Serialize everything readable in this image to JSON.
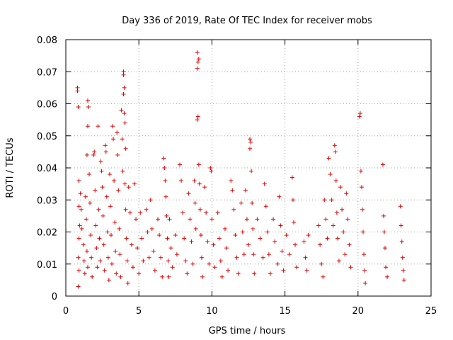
{
  "chart_data": {
    "type": "scatter",
    "title": "Day 336 of 2019, Rate Of TEC Index for receiver mobs",
    "xlabel": "GPS time / hours",
    "ylabel": "ROTI / TECUs",
    "xlim": [
      0,
      25
    ],
    "ylim": [
      0,
      0.08
    ],
    "xticks": [
      "0",
      "5",
      "10",
      "15",
      "20",
      "25"
    ],
    "xtick_values": [
      0,
      5,
      10,
      15,
      20,
      25
    ],
    "yticks": [
      "0",
      "0.01",
      "0.02",
      "0.03",
      "0.04",
      "0.05",
      "0.06",
      "0.07",
      "0.08"
    ],
    "ytick_values": [
      0,
      0.01,
      0.02,
      0.03,
      0.04,
      0.05,
      0.06,
      0.07,
      0.08
    ],
    "grid": true,
    "marker": "+",
    "color": "#e00000",
    "series": [
      {
        "name": "ROTI",
        "points": [
          [
            0.8,
            0.065
          ],
          [
            0.8,
            0.064
          ],
          [
            0.85,
            0.059
          ],
          [
            0.9,
            0.036
          ],
          [
            0.9,
            0.028
          ],
          [
            0.95,
            0.022
          ],
          [
            0.9,
            0.018
          ],
          [
            0.85,
            0.012
          ],
          [
            0.9,
            0.008
          ],
          [
            0.85,
            0.003
          ],
          [
            1.0,
            0.032
          ],
          [
            1.05,
            0.027
          ],
          [
            1.1,
            0.021
          ],
          [
            1.2,
            0.016
          ],
          [
            1.25,
            0.011
          ],
          [
            1.3,
            0.007
          ],
          [
            1.35,
            0.031
          ],
          [
            1.4,
            0.024
          ],
          [
            1.45,
            0.014
          ],
          [
            1.5,
            0.009
          ],
          [
            1.5,
            0.061
          ],
          [
            1.55,
            0.059
          ],
          [
            1.5,
            0.053
          ],
          [
            1.45,
            0.044
          ],
          [
            1.6,
            0.038
          ],
          [
            1.65,
            0.029
          ],
          [
            1.7,
            0.019
          ],
          [
            1.75,
            0.012
          ],
          [
            1.8,
            0.006
          ],
          [
            1.9,
            0.044
          ],
          [
            1.95,
            0.045
          ],
          [
            2.0,
            0.033
          ],
          [
            2.05,
            0.022
          ],
          [
            2.1,
            0.015
          ],
          [
            2.15,
            0.009
          ],
          [
            2.2,
            0.053
          ],
          [
            2.25,
            0.027
          ],
          [
            2.3,
            0.018
          ],
          [
            2.35,
            0.011
          ],
          [
            2.4,
            0.042
          ],
          [
            2.45,
            0.039
          ],
          [
            2.5,
            0.034
          ],
          [
            2.55,
            0.025
          ],
          [
            2.6,
            0.016
          ],
          [
            2.65,
            0.008
          ],
          [
            2.7,
            0.047
          ],
          [
            2.75,
            0.045
          ],
          [
            2.8,
            0.031
          ],
          [
            2.85,
            0.02
          ],
          [
            2.9,
            0.012
          ],
          [
            2.95,
            0.005
          ],
          [
            3.0,
            0.038
          ],
          [
            3.05,
            0.028
          ],
          [
            3.1,
            0.019
          ],
          [
            3.15,
            0.01
          ],
          [
            3.2,
            0.053
          ],
          [
            3.25,
            0.049
          ],
          [
            3.3,
            0.036
          ],
          [
            3.35,
            0.023
          ],
          [
            3.4,
            0.014
          ],
          [
            3.45,
            0.007
          ],
          [
            3.5,
            0.051
          ],
          [
            3.55,
            0.044
          ],
          [
            3.6,
            0.033
          ],
          [
            3.65,
            0.021
          ],
          [
            3.7,
            0.013
          ],
          [
            3.75,
            0.006
          ],
          [
            3.8,
            0.058
          ],
          [
            3.85,
            0.049
          ],
          [
            3.9,
            0.039
          ],
          [
            3.95,
            0.07
          ],
          [
            3.95,
            0.069
          ],
          [
            4.0,
            0.065
          ],
          [
            3.95,
            0.063
          ],
          [
            4.0,
            0.057
          ],
          [
            4.05,
            0.054
          ],
          [
            4.1,
            0.046
          ],
          [
            4.05,
            0.035
          ],
          [
            4.1,
            0.027
          ],
          [
            4.15,
            0.018
          ],
          [
            4.2,
            0.011
          ],
          [
            4.25,
            0.004
          ],
          [
            4.3,
            0.034
          ],
          [
            4.4,
            0.026
          ],
          [
            4.5,
            0.016
          ],
          [
            4.6,
            0.009
          ],
          [
            4.7,
            0.035
          ],
          [
            4.8,
            0.024
          ],
          [
            4.9,
            0.015
          ],
          [
            5.0,
            0.007
          ],
          [
            5.1,
            0.026
          ],
          [
            5.2,
            0.018
          ],
          [
            5.3,
            0.011
          ],
          [
            5.5,
            0.027
          ],
          [
            5.6,
            0.02
          ],
          [
            5.7,
            0.012
          ],
          [
            5.8,
            0.03
          ],
          [
            5.9,
            0.021
          ],
          [
            6.0,
            0.014
          ],
          [
            6.1,
            0.008
          ],
          [
            6.3,
            0.024
          ],
          [
            6.4,
            0.019
          ],
          [
            6.5,
            0.012
          ],
          [
            6.6,
            0.006
          ],
          [
            6.7,
            0.043
          ],
          [
            6.75,
            0.04
          ],
          [
            6.8,
            0.036
          ],
          [
            6.85,
            0.031
          ],
          [
            6.9,
            0.025
          ],
          [
            6.95,
            0.018
          ],
          [
            7.0,
            0.011
          ],
          [
            7.05,
            0.006
          ],
          [
            7.1,
            0.024
          ],
          [
            7.2,
            0.015
          ],
          [
            7.3,
            0.009
          ],
          [
            7.5,
            0.019
          ],
          [
            7.6,
            0.013
          ],
          [
            7.8,
            0.041
          ],
          [
            7.9,
            0.036
          ],
          [
            8.0,
            0.026
          ],
          [
            8.1,
            0.018
          ],
          [
            8.2,
            0.011
          ],
          [
            8.3,
            0.007
          ],
          [
            8.4,
            0.032
          ],
          [
            8.5,
            0.024
          ],
          [
            8.6,
            0.017
          ],
          [
            8.7,
            0.01
          ],
          [
            8.8,
            0.036
          ],
          [
            8.85,
            0.029
          ],
          [
            8.9,
            0.021
          ],
          [
            9.0,
            0.076
          ],
          [
            9.05,
            0.073
          ],
          [
            9.0,
            0.071
          ],
          [
            9.1,
            0.074
          ],
          [
            9.0,
            0.055
          ],
          [
            9.05,
            0.056
          ],
          [
            9.1,
            0.041
          ],
          [
            9.15,
            0.035
          ],
          [
            9.2,
            0.027
          ],
          [
            9.25,
            0.019
          ],
          [
            9.3,
            0.012
          ],
          [
            9.35,
            0.006
          ],
          [
            9.5,
            0.034
          ],
          [
            9.6,
            0.026
          ],
          [
            9.7,
            0.017
          ],
          [
            9.8,
            0.01
          ],
          [
            9.9,
            0.04
          ],
          [
            9.95,
            0.039
          ],
          [
            10.0,
            0.024
          ],
          [
            10.1,
            0.016
          ],
          [
            10.2,
            0.009
          ],
          [
            10.4,
            0.026
          ],
          [
            10.5,
            0.018
          ],
          [
            10.6,
            0.011
          ],
          [
            10.7,
            0.006
          ],
          [
            10.9,
            0.021
          ],
          [
            11.0,
            0.015
          ],
          [
            11.1,
            0.008
          ],
          [
            11.3,
            0.036
          ],
          [
            11.4,
            0.033
          ],
          [
            11.5,
            0.027
          ],
          [
            11.6,
            0.019
          ],
          [
            11.7,
            0.012
          ],
          [
            11.8,
            0.007
          ],
          [
            12.0,
            0.029
          ],
          [
            12.1,
            0.02
          ],
          [
            12.2,
            0.013
          ],
          [
            12.3,
            0.033
          ],
          [
            12.4,
            0.024
          ],
          [
            12.5,
            0.016
          ],
          [
            12.6,
            0.049
          ],
          [
            12.65,
            0.048
          ],
          [
            12.6,
            0.046
          ],
          [
            12.7,
            0.039
          ],
          [
            12.75,
            0.029
          ],
          [
            12.8,
            0.021
          ],
          [
            12.85,
            0.013
          ],
          [
            12.9,
            0.007
          ],
          [
            13.1,
            0.024
          ],
          [
            13.3,
            0.018
          ],
          [
            13.5,
            0.012
          ],
          [
            13.6,
            0.035
          ],
          [
            13.7,
            0.028
          ],
          [
            13.8,
            0.02
          ],
          [
            13.9,
            0.013
          ],
          [
            14.0,
            0.007
          ],
          [
            14.2,
            0.024
          ],
          [
            14.3,
            0.017
          ],
          [
            14.5,
            0.01
          ],
          [
            14.6,
            0.031
          ],
          [
            14.7,
            0.022
          ],
          [
            14.8,
            0.014
          ],
          [
            14.9,
            0.008
          ],
          [
            15.1,
            0.019
          ],
          [
            15.3,
            0.013
          ],
          [
            15.5,
            0.037
          ],
          [
            15.55,
            0.03
          ],
          [
            15.6,
            0.023
          ],
          [
            15.7,
            0.016
          ],
          [
            15.8,
            0.009
          ],
          [
            16.3,
            0.017
          ],
          [
            16.4,
            0.012
          ],
          [
            16.5,
            0.008
          ],
          [
            16.6,
            0.019
          ],
          [
            17.3,
            0.022
          ],
          [
            17.4,
            0.016
          ],
          [
            17.5,
            0.01
          ],
          [
            17.6,
            0.006
          ],
          [
            17.7,
            0.03
          ],
          [
            17.8,
            0.024
          ],
          [
            17.9,
            0.018
          ],
          [
            18.0,
            0.043
          ],
          [
            18.1,
            0.038
          ],
          [
            18.2,
            0.03
          ],
          [
            18.3,
            0.022
          ],
          [
            18.4,
            0.047
          ],
          [
            18.45,
            0.045
          ],
          [
            18.5,
            0.036
          ],
          [
            18.55,
            0.026
          ],
          [
            18.6,
            0.018
          ],
          [
            18.7,
            0.011
          ],
          [
            18.8,
            0.034
          ],
          [
            18.9,
            0.027
          ],
          [
            19.0,
            0.02
          ],
          [
            19.1,
            0.013
          ],
          [
            19.2,
            0.032
          ],
          [
            19.3,
            0.024
          ],
          [
            19.4,
            0.016
          ],
          [
            19.5,
            0.009
          ],
          [
            20.1,
            0.056
          ],
          [
            20.15,
            0.057
          ],
          [
            20.2,
            0.039
          ],
          [
            20.25,
            0.034
          ],
          [
            20.3,
            0.027
          ],
          [
            20.35,
            0.02
          ],
          [
            20.4,
            0.013
          ],
          [
            20.45,
            0.008
          ],
          [
            20.5,
            0.004
          ],
          [
            21.7,
            0.041
          ],
          [
            21.75,
            0.025
          ],
          [
            21.8,
            0.02
          ],
          [
            21.85,
            0.015
          ],
          [
            21.9,
            0.009
          ],
          [
            22.0,
            0.006
          ],
          [
            22.9,
            0.028
          ],
          [
            22.95,
            0.022
          ],
          [
            23.0,
            0.017
          ],
          [
            23.05,
            0.012
          ],
          [
            23.1,
            0.008
          ],
          [
            23.15,
            0.005
          ]
        ]
      }
    ]
  }
}
